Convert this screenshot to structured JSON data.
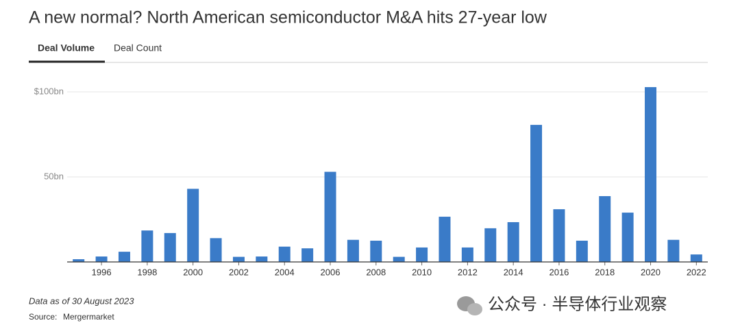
{
  "tabs": [
    "Deal Volume",
    "Deal Count"
  ],
  "note": "Data as of 30 August 2023",
  "source_label": "Source:",
  "source": "Mergermarket",
  "watermark": "公众号 · 半导体行业观察",
  "chart_data": {
    "type": "bar",
    "title": "A new normal? North American semiconductor M&A hits 27-year low",
    "categories": [
      null,
      "1996",
      null,
      "1998",
      null,
      "2000",
      null,
      "2002",
      null,
      "2004",
      null,
      "2006",
      null,
      "2008",
      null,
      "2010",
      null,
      "2012",
      null,
      "2014",
      null,
      "2016",
      null,
      "2018",
      null,
      "2020",
      null,
      "2022"
    ],
    "values": [
      1.6,
      3.2,
      6,
      18.5,
      17,
      43,
      14,
      3,
      3.2,
      9,
      8,
      53,
      13,
      12.5,
      3,
      8.5,
      26.6,
      8.5,
      19.8,
      23.4,
      80.6,
      31,
      12.5,
      38.7,
      29,
      102.8,
      13,
      4.4
    ],
    "color": "#3a7bc8",
    "ylim": [
      0,
      105
    ],
    "yticks": [
      {
        "value": 50,
        "label": "50bn"
      },
      {
        "value": 100,
        "label": "$100bn"
      }
    ],
    "grid": true
  }
}
